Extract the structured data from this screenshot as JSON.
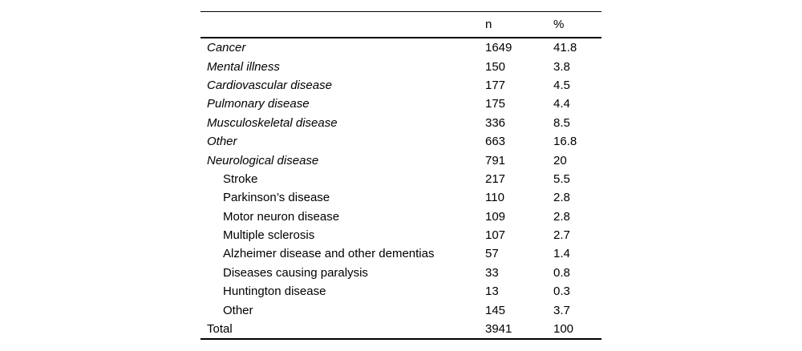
{
  "colors": {
    "background": "#ffffff",
    "text": "#000000",
    "rule": "#000000"
  },
  "table": {
    "header": {
      "label": "",
      "n": "n",
      "pct": "%"
    },
    "rows": [
      {
        "label": "Cancer",
        "n": "1649",
        "pct": "41.8",
        "italic": true,
        "indent": 0
      },
      {
        "label": "Mental illness",
        "n": "150",
        "pct": "3.8",
        "italic": true,
        "indent": 0
      },
      {
        "label": "Cardiovascular disease",
        "n": "177",
        "pct": "4.5",
        "italic": true,
        "indent": 0
      },
      {
        "label": "Pulmonary disease",
        "n": "175",
        "pct": "4.4",
        "italic": true,
        "indent": 0
      },
      {
        "label": "Musculoskeletal disease",
        "n": "336",
        "pct": "8.5",
        "italic": true,
        "indent": 0
      },
      {
        "label": "Other",
        "n": "663",
        "pct": "16.8",
        "italic": true,
        "indent": 0
      },
      {
        "label": "Neurological disease",
        "n": "791",
        "pct": "20",
        "italic": true,
        "indent": 0
      },
      {
        "label": "Stroke",
        "n": "217",
        "pct": "5.5",
        "italic": false,
        "indent": 1
      },
      {
        "label": "Parkinson’s disease",
        "n": "110",
        "pct": "2.8",
        "italic": false,
        "indent": 1
      },
      {
        "label": "Motor neuron disease",
        "n": "109",
        "pct": "2.8",
        "italic": false,
        "indent": 1
      },
      {
        "label": "Multiple sclerosis",
        "n": "107",
        "pct": "2.7",
        "italic": false,
        "indent": 1
      },
      {
        "label": "Alzheimer disease and other dementias",
        "n": "57",
        "pct": "1.4",
        "italic": false,
        "indent": 1
      },
      {
        "label": "Diseases causing paralysis",
        "n": "33",
        "pct": "0.8",
        "italic": false,
        "indent": 1
      },
      {
        "label": "Huntington disease",
        "n": "13",
        "pct": "0.3",
        "italic": false,
        "indent": 1
      },
      {
        "label": "Other",
        "n": "145",
        "pct": "3.7",
        "italic": false,
        "indent": 1
      },
      {
        "label": "Total",
        "n": "3941",
        "pct": "100",
        "italic": false,
        "indent": 0
      }
    ]
  }
}
